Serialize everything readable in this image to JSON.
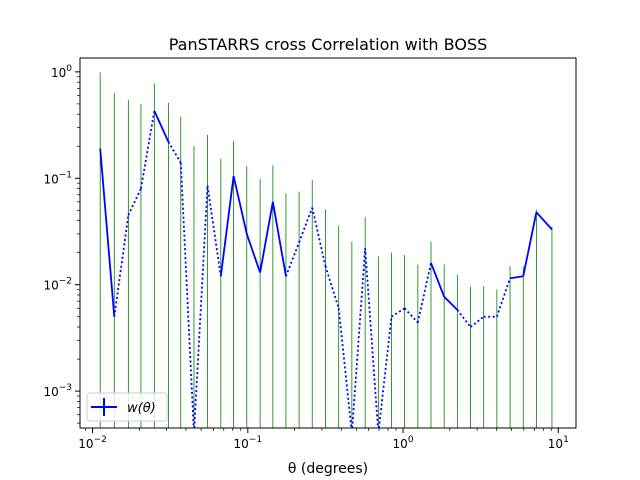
{
  "chart_data": {
    "type": "line",
    "title": "PanSTARRS cross Correlation with BOSS",
    "xlabel": "θ (degrees)",
    "ylabel": "",
    "xscale": "log",
    "yscale": "log",
    "xlim": [
      0.0083,
      13.0
    ],
    "ylim": [
      0.00045,
      1.35
    ],
    "grid": false,
    "legend": {
      "position": "lower-left",
      "entries": [
        {
          "label": "w(θ)",
          "color": "#0000ff"
        }
      ]
    },
    "x_ticks": [
      {
        "value": 0.01,
        "base": "10",
        "exp": "−2"
      },
      {
        "value": 0.1,
        "base": "10",
        "exp": "−1"
      },
      {
        "value": 1,
        "base": "10",
        "exp": "0"
      },
      {
        "value": 10,
        "base": "10",
        "exp": "1"
      }
    ],
    "y_ticks": [
      {
        "value": 0.001,
        "base": "10",
        "exp": "−3"
      },
      {
        "value": 0.01,
        "base": "10",
        "exp": "−2"
      },
      {
        "value": 0.1,
        "base": "10",
        "exp": "−1"
      },
      {
        "value": 1,
        "base": "10",
        "exp": "0"
      }
    ],
    "series": [
      {
        "name": "w(θ)",
        "color": "#0000ff",
        "errorbar_color": "#008000",
        "x": [
          0.0112,
          0.0138,
          0.017,
          0.0205,
          0.025,
          0.0308,
          0.037,
          0.045,
          0.055,
          0.067,
          0.081,
          0.0985,
          0.12,
          0.145,
          0.176,
          0.214,
          0.26,
          0.316,
          0.385,
          0.468,
          0.57,
          0.693,
          0.842,
          1.023,
          1.245,
          1.513,
          1.84,
          2.237,
          2.72,
          3.307,
          4.02,
          4.888,
          5.943,
          7.225,
          9.1
        ],
        "y": [
          0.19,
          0.005,
          0.045,
          0.08,
          0.43,
          0.22,
          0.14,
          0.0004,
          0.085,
          0.012,
          0.105,
          0.03,
          0.013,
          0.06,
          0.012,
          0.025,
          0.053,
          0.015,
          0.006,
          0.0004,
          0.022,
          0.0004,
          0.005,
          0.006,
          0.0044,
          0.016,
          0.0077,
          0.0058,
          0.004,
          0.005,
          0.005,
          0.0115,
          0.012,
          0.048,
          0.033
        ],
        "negative": [
          false,
          false,
          true,
          true,
          false,
          false,
          true,
          false,
          true,
          false,
          false,
          false,
          false,
          false,
          false,
          true,
          true,
          true,
          true,
          true,
          false,
          true,
          true,
          true,
          true,
          false,
          false,
          false,
          true,
          true,
          true,
          false,
          false,
          false,
          false
        ],
        "error": [
          0.8,
          0.63,
          0.5,
          0.42,
          0.35,
          0.29,
          0.24,
          0.2,
          0.17,
          0.14,
          0.12,
          0.1,
          0.085,
          0.072,
          0.06,
          0.05,
          0.043,
          0.036,
          0.03,
          0.025,
          0.021,
          0.018,
          0.015,
          0.013,
          0.011,
          0.0093,
          0.0078,
          0.0066,
          0.0056,
          0.0047,
          0.004,
          0.0034,
          0.0029,
          0.0025,
          0.0021
        ]
      }
    ]
  }
}
